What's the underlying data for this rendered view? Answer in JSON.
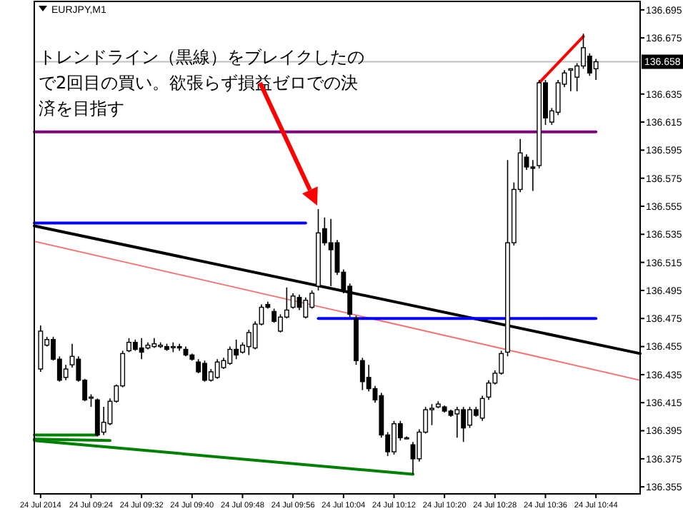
{
  "chart_data": {
    "type": "candlestick",
    "title": "EURJPY,M1",
    "annotations": [
      "トレンドライン（黒線）をブレイクしたので2回目の買い。欲張らず損益ゼロでの決済を目指す"
    ],
    "color": "#000000",
    "x": [
      "2014-07-24T09:16",
      "2014-07-24T09:17",
      "2014-07-24T09:18",
      "2014-07-24T09:19",
      "2014-07-24T09:20",
      "2014-07-24T09:21",
      "2014-07-24T09:22",
      "2014-07-24T09:23",
      "2014-07-24T09:24",
      "2014-07-24T09:25",
      "2014-07-24T09:26",
      "2014-07-24T09:27",
      "2014-07-24T09:28",
      "2014-07-24T09:29",
      "2014-07-24T09:30",
      "2014-07-24T09:31",
      "2014-07-24T09:32",
      "2014-07-24T09:33",
      "2014-07-24T09:34",
      "2014-07-24T09:35",
      "2014-07-24T09:36",
      "2014-07-24T09:37",
      "2014-07-24T09:38",
      "2014-07-24T09:39",
      "2014-07-24T09:40",
      "2014-07-24T09:41",
      "2014-07-24T09:42",
      "2014-07-24T09:43",
      "2014-07-24T09:44",
      "2014-07-24T09:45",
      "2014-07-24T09:46",
      "2014-07-24T09:47",
      "2014-07-24T09:48",
      "2014-07-24T09:49",
      "2014-07-24T09:50",
      "2014-07-24T09:51",
      "2014-07-24T09:52",
      "2014-07-24T09:53",
      "2014-07-24T09:54",
      "2014-07-24T09:55",
      "2014-07-24T09:56",
      "2014-07-24T09:57",
      "2014-07-24T09:58",
      "2014-07-24T09:59",
      "2014-07-24T10:00",
      "2014-07-24T10:01",
      "2014-07-24T10:02",
      "2014-07-24T10:03",
      "2014-07-24T10:04",
      "2014-07-24T10:05",
      "2014-07-24T10:06",
      "2014-07-24T10:07",
      "2014-07-24T10:08",
      "2014-07-24T10:09",
      "2014-07-24T10:10",
      "2014-07-24T10:11",
      "2014-07-24T10:12",
      "2014-07-24T10:13",
      "2014-07-24T10:14",
      "2014-07-24T10:15",
      "2014-07-24T10:16",
      "2014-07-24T10:17",
      "2014-07-24T10:18",
      "2014-07-24T10:19",
      "2014-07-24T10:20",
      "2014-07-24T10:21",
      "2014-07-24T10:22",
      "2014-07-24T10:23",
      "2014-07-24T10:24",
      "2014-07-24T10:25",
      "2014-07-24T10:26",
      "2014-07-24T10:27",
      "2014-07-24T10:28",
      "2014-07-24T10:29",
      "2014-07-24T10:30",
      "2014-07-24T10:31",
      "2014-07-24T10:32",
      "2014-07-24T10:33",
      "2014-07-24T10:34",
      "2014-07-24T10:35",
      "2014-07-24T10:36",
      "2014-07-24T10:37",
      "2014-07-24T10:38",
      "2014-07-24T10:39",
      "2014-07-24T10:40",
      "2014-07-24T10:41",
      "2014-07-24T10:42",
      "2014-07-24T10:43",
      "2014-07-24T10:44"
    ],
    "ohlc": [
      [
        136.439,
        136.47,
        136.437,
        136.466
      ],
      [
        136.456,
        136.462,
        136.455,
        136.46
      ],
      [
        136.46,
        136.462,
        136.445,
        136.446
      ],
      [
        136.446,
        136.448,
        136.43,
        136.431
      ],
      [
        136.433,
        136.442,
        136.431,
        136.439
      ],
      [
        136.442,
        136.457,
        136.44,
        136.448
      ],
      [
        136.446,
        136.448,
        136.43,
        136.431
      ],
      [
        136.431,
        136.432,
        136.416,
        136.417
      ],
      [
        136.419,
        136.421,
        136.412,
        136.419
      ],
      [
        136.417,
        136.418,
        136.391,
        136.392
      ],
      [
        136.394,
        136.412,
        136.392,
        136.401
      ],
      [
        136.4,
        136.418,
        136.399,
        136.416
      ],
      [
        136.416,
        136.428,
        136.415,
        136.427
      ],
      [
        136.427,
        136.452,
        136.426,
        136.45
      ],
      [
        136.452,
        136.461,
        136.451,
        136.458
      ],
      [
        136.458,
        136.46,
        136.452,
        136.453
      ],
      [
        136.454,
        136.461,
        136.446,
        136.451
      ],
      [
        136.454,
        136.458,
        136.453,
        136.456
      ],
      [
        136.455,
        136.461,
        136.454,
        136.457
      ],
      [
        136.455,
        136.458,
        136.454,
        136.456
      ],
      [
        136.455,
        136.457,
        136.452,
        136.453
      ],
      [
        136.455,
        136.458,
        136.451,
        136.455
      ],
      [
        136.455,
        136.457,
        136.452,
        136.454
      ],
      [
        136.453,
        136.455,
        136.448,
        136.449
      ],
      [
        136.449,
        136.45,
        136.445,
        136.446
      ],
      [
        136.444,
        136.446,
        136.436,
        136.437
      ],
      [
        136.443,
        136.445,
        136.43,
        136.431
      ],
      [
        136.431,
        136.439,
        136.43,
        136.437
      ],
      [
        136.433,
        136.446,
        136.432,
        136.444
      ],
      [
        136.44,
        136.447,
        136.439,
        136.445
      ],
      [
        136.443,
        136.455,
        136.442,
        136.453
      ],
      [
        136.453,
        136.46,
        136.446,
        136.449
      ],
      [
        136.451,
        136.458,
        136.45,
        136.456
      ],
      [
        136.455,
        136.467,
        136.449,
        136.465
      ],
      [
        136.454,
        136.473,
        136.453,
        136.471
      ],
      [
        136.471,
        136.485,
        136.47,
        136.483
      ],
      [
        136.485,
        136.487,
        136.482,
        136.483
      ],
      [
        136.48,
        136.482,
        136.472,
        136.473
      ],
      [
        136.466,
        136.478,
        136.465,
        136.476
      ],
      [
        136.476,
        136.497,
        136.475,
        136.481
      ],
      [
        136.483,
        136.493,
        136.482,
        136.491
      ],
      [
        136.49,
        136.492,
        136.481,
        136.483
      ],
      [
        136.476,
        136.49,
        136.475,
        136.488
      ],
      [
        136.483,
        136.495,
        136.482,
        136.493
      ],
      [
        136.498,
        136.553,
        136.495,
        136.536
      ],
      [
        136.539,
        136.547,
        136.527,
        136.529
      ],
      [
        136.529,
        136.546,
        136.498,
        136.524
      ],
      [
        136.529,
        136.531,
        136.506,
        136.508
      ],
      [
        136.508,
        136.51,
        136.493,
        136.495
      ],
      [
        136.498,
        136.5,
        136.476,
        136.478
      ],
      [
        136.475,
        136.477,
        136.442,
        136.445
      ],
      [
        136.445,
        136.447,
        136.424,
        136.43
      ],
      [
        136.433,
        136.442,
        136.423,
        136.425
      ],
      [
        136.425,
        136.427,
        136.415,
        136.417
      ],
      [
        136.42,
        136.422,
        136.39,
        136.392
      ],
      [
        136.392,
        136.394,
        136.377,
        136.38
      ],
      [
        136.38,
        136.402,
        136.378,
        136.4
      ],
      [
        136.4,
        136.402,
        136.388,
        136.39
      ],
      [
        136.39,
        136.391,
        136.389,
        136.39
      ],
      [
        136.385,
        136.387,
        136.364,
        136.375
      ],
      [
        136.375,
        136.396,
        136.373,
        136.394
      ],
      [
        136.394,
        136.412,
        136.393,
        136.41
      ],
      [
        136.41,
        136.414,
        136.399,
        136.411
      ],
      [
        136.412,
        136.416,
        136.411,
        136.414
      ],
      [
        136.412,
        136.413,
        136.408,
        136.409
      ],
      [
        136.409,
        136.41,
        136.405,
        136.406
      ],
      [
        136.407,
        136.412,
        136.39,
        136.41
      ],
      [
        136.41,
        136.412,
        136.387,
        136.397
      ],
      [
        136.399,
        136.412,
        136.397,
        136.41
      ],
      [
        136.41,
        136.412,
        136.405,
        136.406
      ],
      [
        136.404,
        136.42,
        136.402,
        136.418
      ],
      [
        136.419,
        136.431,
        136.417,
        136.429
      ],
      [
        136.429,
        136.438,
        136.428,
        136.436
      ],
      [
        136.436,
        136.452,
        136.435,
        136.45
      ],
      [
        136.451,
        136.588,
        136.448,
        136.529
      ],
      [
        136.529,
        136.572,
        136.527,
        136.567
      ],
      [
        136.567,
        136.603,
        136.565,
        136.593
      ],
      [
        136.59,
        136.592,
        136.581,
        136.583
      ],
      [
        136.583,
        136.588,
        136.566,
        136.582
      ],
      [
        136.584,
        136.645,
        136.582,
        136.643
      ],
      [
        136.643,
        136.645,
        136.613,
        136.618
      ],
      [
        136.615,
        136.625,
        136.613,
        136.623
      ],
      [
        136.622,
        136.645,
        136.62,
        136.643
      ],
      [
        136.642,
        136.652,
        136.64,
        136.65
      ],
      [
        136.652,
        136.653,
        136.637,
        136.653
      ],
      [
        136.647,
        136.657,
        136.637,
        136.655
      ],
      [
        136.655,
        136.678,
        136.653,
        136.668
      ],
      [
        136.662,
        136.664,
        136.648,
        136.65
      ],
      [
        136.653,
        136.66,
        136.645,
        136.658
      ]
    ],
    "series": [
      {
        "type": "line",
        "color": "#000000",
        "x": [
          "2014-07-24T09:15",
          "2014-07-24T10:51"
        ],
        "values": [
          136.541,
          136.45
        ]
      },
      {
        "type": "line",
        "color": "#ff6a6a",
        "x": [
          "2014-07-24T09:15",
          "2014-07-24T10:51"
        ],
        "values": [
          136.53,
          136.431
        ]
      },
      {
        "type": "line",
        "color": "#ff0000",
        "x": [
          "2014-07-24T10:35",
          "2014-07-24T10:42"
        ],
        "values": [
          136.643,
          136.676
        ]
      },
      {
        "type": "line",
        "color": "#800080",
        "x": [
          "2014-07-24T09:15",
          "2014-07-24T10:44"
        ],
        "values": [
          136.608,
          136.608
        ]
      },
      {
        "type": "line",
        "color": "#0000ff",
        "x": [
          "2014-07-24T09:15",
          "2014-07-24T09:58"
        ],
        "values": [
          136.543,
          136.543
        ]
      },
      {
        "type": "line",
        "color": "#0000ff",
        "x": [
          "2014-07-24T10:00",
          "2014-07-24T10:44"
        ],
        "values": [
          136.475,
          136.475
        ]
      },
      {
        "type": "line",
        "color": "#008000",
        "x": [
          "2014-07-24T09:15",
          "2014-07-24T09:25"
        ],
        "values": [
          136.392,
          136.392
        ]
      },
      {
        "type": "line",
        "color": "#008000",
        "x": [
          "2014-07-24T09:15",
          "2014-07-24T09:27"
        ],
        "values": [
          136.389,
          136.388
        ]
      },
      {
        "type": "line",
        "color": "#008000",
        "x": [
          "2014-07-24T09:15",
          "2014-07-24T10:15"
        ],
        "values": [
          136.388,
          136.364
        ]
      }
    ],
    "ref_lines": [
      {
        "axis": "y",
        "value": 136.658,
        "label": "136.658",
        "color": "#c0c0c0"
      }
    ],
    "xlim": [
      "2014-07-24T09:15",
      "2014-07-24T10:51"
    ],
    "xticks": [
      {
        "value": "2014-07-24T09:16",
        "label": "24 Jul 2014"
      },
      {
        "value": "2014-07-24T09:24",
        "label": "24 Jul 09:24"
      },
      {
        "value": "2014-07-24T09:32",
        "label": "24 Jul 09:32"
      },
      {
        "value": "2014-07-24T09:40",
        "label": "24 Jul 09:40"
      },
      {
        "value": "2014-07-24T09:48",
        "label": "24 Jul 09:48"
      },
      {
        "value": "2014-07-24T09:56",
        "label": "24 Jul 09:56"
      },
      {
        "value": "2014-07-24T10:04",
        "label": "24 Jul 10:04"
      },
      {
        "value": "2014-07-24T10:12",
        "label": "24 Jul 10:12"
      },
      {
        "value": "2014-07-24T10:20",
        "label": "24 Jul 10:20"
      },
      {
        "value": "2014-07-24T10:28",
        "label": "24 Jul 10:28"
      },
      {
        "value": "2014-07-24T10:36",
        "label": "24 Jul 10:36"
      },
      {
        "value": "2014-07-24T10:44",
        "label": "24 Jul 10:44"
      }
    ],
    "ylim": [
      136.35,
      136.701
    ],
    "yticks": [
      136.355,
      136.375,
      136.395,
      136.415,
      136.435,
      136.455,
      136.475,
      136.495,
      136.515,
      136.535,
      136.555,
      136.575,
      136.595,
      136.615,
      136.635,
      136.675,
      136.695
    ]
  }
}
